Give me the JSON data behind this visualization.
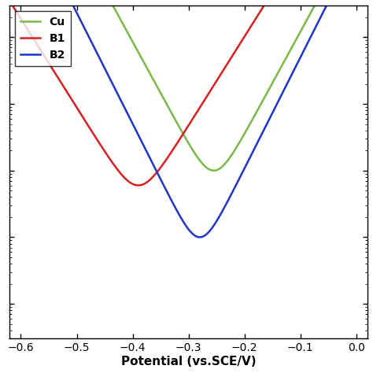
{
  "title": "",
  "xlabel": "Potential (vs.SCE/V)",
  "ylabel": "",
  "xlim": [
    -0.62,
    0.02
  ],
  "legend": [
    "Cu",
    "B1",
    "B2"
  ],
  "colors": {
    "Cu": "#7ab848",
    "B1": "#d42020",
    "B2": "#2035c8"
  },
  "Cu_Ecorr": -0.255,
  "B1_Ecorr": -0.39,
  "B2_Ecorr": -0.28,
  "Cu_icorr": 5e-06,
  "B1_icorr": 3e-06,
  "B2_icorr": 5e-07,
  "Cu_ba": 0.065,
  "Cu_bc": 0.065,
  "B1_ba": 0.075,
  "B1_bc": 0.075,
  "B2_ba": 0.06,
  "B2_bc": 0.06,
  "ylim_min": 1e-09,
  "ylim_max": 0.01,
  "background_color": "#ffffff"
}
